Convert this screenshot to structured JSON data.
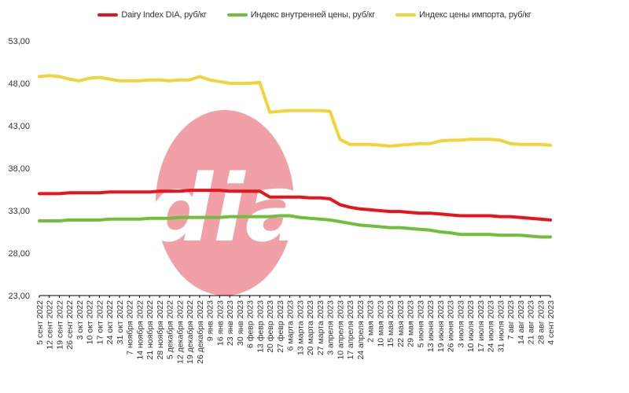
{
  "chart_data": {
    "type": "line",
    "title": "",
    "xlabel": "",
    "ylabel": "",
    "ylim": [
      23,
      53
    ],
    "yticks": [
      "23,00",
      "28,00",
      "33,00",
      "38,00",
      "43,00",
      "48,00",
      "53,00"
    ],
    "ytick_values": [
      23,
      28,
      33,
      38,
      43,
      48,
      53
    ],
    "grid": false,
    "legend_position": "top",
    "categories": [
      "5 сент 2022",
      "12 сент 2022",
      "19 сент 2022",
      "26 сент 2022",
      "3 окт 2022",
      "10 окт 2022",
      "17 окт 2022",
      "24 окт 2022",
      "31 окт 2022",
      "7 ноября 2022",
      "14 ноября 2022",
      "21 ноября 2022",
      "28 ноября 2022",
      "5 декабря 2022",
      "12 декабря 2022",
      "19 декабря 2022",
      "26 декабря 2022",
      "9 янв 2023",
      "16 янв 2023",
      "23 янв 2023",
      "30 янв 2023",
      "6 февр 2023",
      "13 февр 2023",
      "20 февр 2023",
      "27 февр 2023",
      "6 марта 2023",
      "13 марта 2023",
      "20 марта 2023",
      "27 марта 2023",
      "3 апреля 2023",
      "10 апреля 2023",
      "17 апреля 2023",
      "24 апреля 2023",
      "2 мая 2023",
      "10 мая 2023",
      "15 мая 2023",
      "22 мая 2023",
      "29 мая 2023",
      "5 июня 2023",
      "13 июня 2023",
      "19 июня 2023",
      "26 июня 2023",
      "3 июля 2023",
      "10 июля 2023",
      "17 июля 2023",
      "24 июля 2023",
      "31 июля 2023",
      "7 авг 2023",
      "14 авг 2023",
      "21 авг 2023",
      "28 авг 2023",
      "4 сент 2023"
    ],
    "series": [
      {
        "name": "Dairy Index DIA, руб/кг",
        "color": "#e8141c",
        "values": [
          35.0,
          35.0,
          35.0,
          35.1,
          35.1,
          35.1,
          35.1,
          35.2,
          35.2,
          35.2,
          35.2,
          35.2,
          35.3,
          35.3,
          35.3,
          35.4,
          35.4,
          35.4,
          35.4,
          35.3,
          35.3,
          35.3,
          35.3,
          34.6,
          34.6,
          34.6,
          34.6,
          34.5,
          34.5,
          34.4,
          33.7,
          33.4,
          33.2,
          33.1,
          33.0,
          32.9,
          32.9,
          32.8,
          32.7,
          32.7,
          32.6,
          32.5,
          32.4,
          32.4,
          32.4,
          32.4,
          32.3,
          32.3,
          32.2,
          32.1,
          32.0,
          31.9
        ]
      },
      {
        "name": "Индекс внутренней цены, руб/кг",
        "color": "#6fbf3a",
        "values": [
          31.8,
          31.8,
          31.8,
          31.9,
          31.9,
          31.9,
          31.9,
          32.0,
          32.0,
          32.0,
          32.0,
          32.1,
          32.1,
          32.1,
          32.2,
          32.2,
          32.2,
          32.2,
          32.2,
          32.3,
          32.3,
          32.3,
          32.3,
          32.3,
          32.4,
          32.4,
          32.2,
          32.1,
          32.0,
          31.9,
          31.7,
          31.5,
          31.3,
          31.2,
          31.1,
          31.0,
          31.0,
          30.9,
          30.8,
          30.7,
          30.5,
          30.4,
          30.2,
          30.2,
          30.2,
          30.2,
          30.1,
          30.1,
          30.1,
          30.0,
          29.9,
          29.9
        ]
      },
      {
        "name": "Индекс цены импорта, руб/кг",
        "color": "#f2d43a",
        "values": [
          48.8,
          48.9,
          48.8,
          48.5,
          48.3,
          48.6,
          48.7,
          48.5,
          48.3,
          48.3,
          48.3,
          48.4,
          48.4,
          48.3,
          48.4,
          48.4,
          48.8,
          48.4,
          48.2,
          48.0,
          48.0,
          48.0,
          48.1,
          44.6,
          44.7,
          44.8,
          44.8,
          44.8,
          44.8,
          44.7,
          41.4,
          40.8,
          40.8,
          40.8,
          40.7,
          40.6,
          40.7,
          40.8,
          40.9,
          40.9,
          41.2,
          41.3,
          41.3,
          41.4,
          41.4,
          41.4,
          41.3,
          40.9,
          40.8,
          40.8,
          40.8,
          40.7
        ]
      }
    ]
  },
  "watermark": {
    "text": "dia",
    "circle_color": "#f2a0a8",
    "text_color": "#ffffff"
  }
}
